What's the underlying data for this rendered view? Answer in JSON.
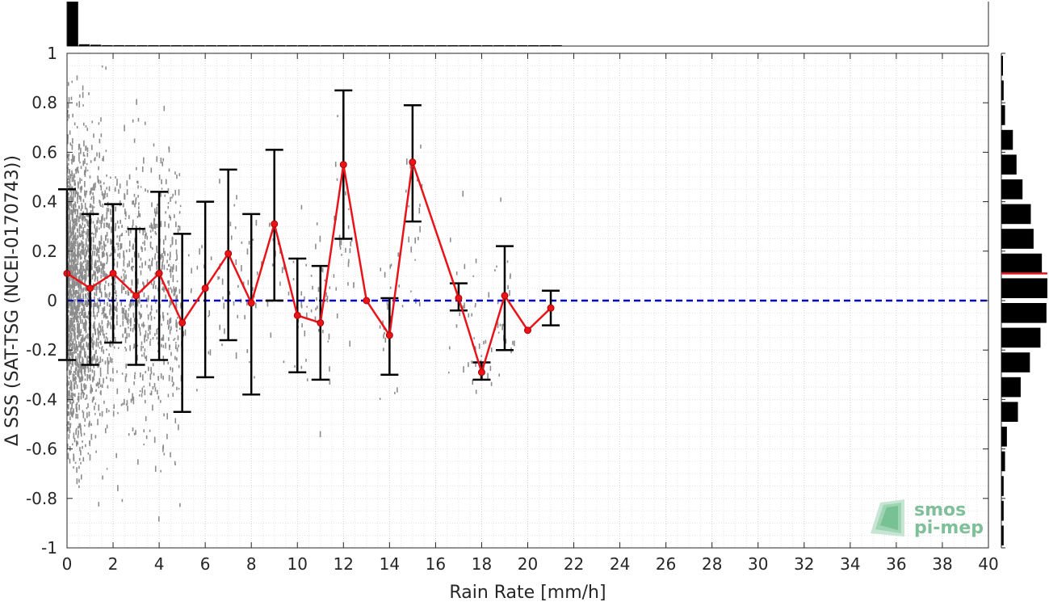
{
  "chart_data": {
    "type": "scatter",
    "xlabel": "Rain Rate [mm/h]",
    "ylabel": "Δ SSS (SAT-TSG (NCEI-0170743))",
    "xlim": [
      0,
      40
    ],
    "ylim": [
      -1,
      1
    ],
    "x_ticks": [
      "0",
      "2",
      "4",
      "6",
      "8",
      "10",
      "12",
      "14",
      "16",
      "18",
      "20",
      "22",
      "24",
      "26",
      "28",
      "30",
      "32",
      "34",
      "36",
      "38",
      "40"
    ],
    "y_ticks": [
      "-1",
      "-0.8",
      "-0.6",
      "-0.4",
      "-0.2",
      "0",
      "0.2",
      "0.4",
      "0.6",
      "0.8",
      "1"
    ],
    "grid": true,
    "reference_line": {
      "y": 0,
      "style": "dashed",
      "color": "#0000cc"
    },
    "mean_series": {
      "color": "#e8141a",
      "x": [
        0,
        1,
        2,
        3,
        4,
        5,
        6,
        7,
        8,
        9,
        10,
        11,
        12,
        13,
        14,
        15,
        17,
        18,
        19,
        20,
        21
      ],
      "y": [
        0.11,
        0.05,
        0.11,
        0.02,
        0.11,
        -0.09,
        0.05,
        0.19,
        -0.01,
        0.31,
        -0.06,
        -0.09,
        0.55,
        0.0,
        -0.14,
        0.56,
        0.01,
        -0.29,
        0.02,
        -0.12,
        -0.03
      ],
      "err_low": [
        -0.24,
        -0.26,
        -0.17,
        -0.26,
        -0.24,
        -0.45,
        -0.31,
        -0.16,
        -0.38,
        0.0,
        -0.29,
        -0.32,
        0.25,
        0.0,
        -0.3,
        0.32,
        -0.04,
        -0.32,
        -0.2,
        -0.12,
        -0.1
      ],
      "err_high": [
        0.45,
        0.35,
        0.39,
        0.29,
        0.44,
        0.27,
        0.4,
        0.53,
        0.35,
        0.61,
        0.17,
        0.14,
        0.85,
        0.0,
        0.01,
        0.79,
        0.07,
        -0.25,
        0.22,
        -0.12,
        0.04
      ]
    },
    "scatter_color": "#8c8c8c",
    "x_histogram": {
      "bin_width": 0.5,
      "relative_heights": [
        1.0,
        0.04,
        0.03,
        0.02,
        0.02,
        0.015,
        0.015,
        0.01,
        0.01,
        0.01,
        0.01,
        0.008,
        0.008,
        0.006,
        0.006,
        0.005,
        0.005,
        0.004,
        0.004,
        0.004,
        0.003,
        0.003,
        0.003,
        0.003,
        0.002,
        0.002,
        0.002,
        0.002,
        0.002,
        0.002,
        0.002,
        0.002,
        0.002,
        0.002,
        0.002,
        0.002,
        0.002,
        0.002,
        0.002,
        0.002,
        0.002,
        0.002,
        0.002
      ]
    },
    "y_histogram": {
      "bin_centers": [
        -0.95,
        -0.85,
        -0.75,
        -0.65,
        -0.55,
        -0.45,
        -0.35,
        -0.25,
        -0.15,
        -0.05,
        0.05,
        0.15,
        0.25,
        0.35,
        0.45,
        0.55,
        0.65,
        0.75,
        0.85,
        0.95
      ],
      "relative_lengths": [
        0.05,
        0.05,
        0.05,
        0.08,
        0.12,
        0.36,
        0.42,
        0.62,
        0.85,
        0.98,
        1.0,
        0.88,
        0.7,
        0.64,
        0.46,
        0.33,
        0.25,
        0.08,
        0.05,
        0.03
      ],
      "mean": 0.11,
      "mean_color": "#e8141a"
    }
  },
  "logo": {
    "line1": "smos",
    "line2": "pi-mep",
    "color": "#7fbf9a"
  }
}
